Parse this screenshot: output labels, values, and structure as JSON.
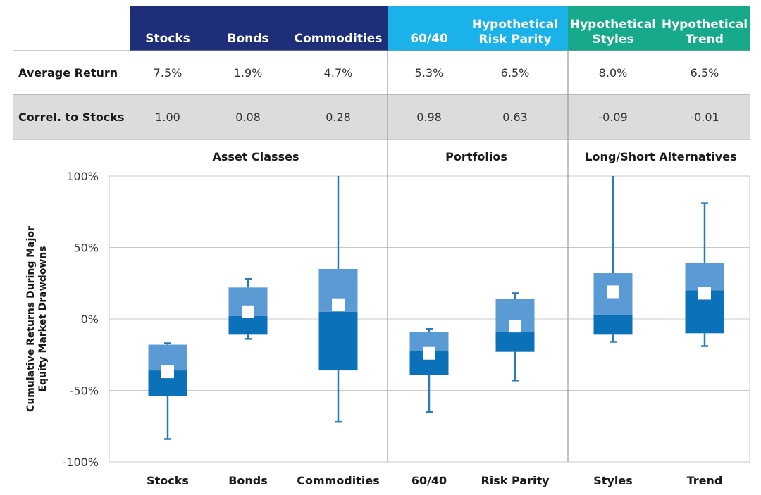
{
  "colors": {
    "header_navy": "#1e2e78",
    "header_cyan": "#1ab2e8",
    "header_teal": "#17aa8a",
    "row_shade": "#dcdcdc",
    "box_upper": "#5b9bd5",
    "box_lower": "#0b71b8",
    "whisker": "#2a7ab8",
    "median_marker": "#ffffff",
    "divider": "#9a9a9a",
    "grid": "#c8c8c8"
  },
  "table": {
    "columns": [
      {
        "label_lines": [
          "Stocks"
        ],
        "header_color": "header_navy"
      },
      {
        "label_lines": [
          "Bonds"
        ],
        "header_color": "header_navy"
      },
      {
        "label_lines": [
          "Commodities"
        ],
        "header_color": "header_navy"
      },
      {
        "label_lines": [
          "60/40"
        ],
        "header_color": "header_cyan"
      },
      {
        "label_lines": [
          "Hypothetical",
          "Risk Parity"
        ],
        "header_color": "header_cyan"
      },
      {
        "label_lines": [
          "Hypothetical",
          "Styles"
        ],
        "header_color": "header_teal"
      },
      {
        "label_lines": [
          "Hypothetical",
          "Trend"
        ],
        "header_color": "header_teal"
      }
    ],
    "rows": [
      {
        "label": "Average Return",
        "values": [
          "7.5%",
          "1.9%",
          "4.7%",
          "5.3%",
          "6.5%",
          "8.0%",
          "6.5%"
        ],
        "shaded": false
      },
      {
        "label": "Correl. to Stocks",
        "values": [
          "1.00",
          "0.08",
          "0.28",
          "0.98",
          "0.63",
          "-0.09",
          "-0.01"
        ],
        "shaded": true
      }
    ]
  },
  "chart_data": {
    "type": "box",
    "groups": [
      {
        "label": "Asset Classes",
        "categories": [
          "Stocks",
          "Bonds",
          "Commodities"
        ]
      },
      {
        "label": "Portfolios",
        "categories": [
          "60/40",
          "Risk Parity"
        ]
      },
      {
        "label": "Long/Short Alternatives",
        "categories": [
          "Styles",
          "Trend"
        ]
      }
    ],
    "categories": [
      "Stocks",
      "Bonds",
      "Commodities",
      "60/40",
      "Risk Parity",
      "Styles",
      "Trend"
    ],
    "series": [
      {
        "category": "Stocks",
        "min": -84,
        "q1": -54,
        "median": -37,
        "mean": -36,
        "q3": -18,
        "max": -17
      },
      {
        "category": "Bonds",
        "min": -14,
        "q1": -11,
        "median": 5,
        "mean": 2,
        "q3": 22,
        "max": 28
      },
      {
        "category": "Commodities",
        "min": -72,
        "q1": -36,
        "median": 10,
        "mean": 5,
        "q3": 35,
        "max": 100
      },
      {
        "category": "60/40",
        "min": -65,
        "q1": -39,
        "median": -24,
        "mean": -22,
        "q3": -9,
        "max": -7
      },
      {
        "category": "Risk Parity",
        "min": -43,
        "q1": -23,
        "median": -5,
        "mean": -9,
        "q3": 14,
        "max": 18
      },
      {
        "category": "Styles",
        "min": -16,
        "q1": -11,
        "median": 19,
        "mean": 3,
        "q3": 32,
        "max": 100
      },
      {
        "category": "Trend",
        "min": -19,
        "q1": -10,
        "median": 18,
        "mean": 20,
        "q3": 39,
        "max": 81
      }
    ],
    "yticks": [
      100,
      50,
      0,
      -50,
      -100
    ],
    "ytick_labels": [
      "100%",
      "50%",
      "0%",
      "-50%",
      "-100%"
    ],
    "ylim": [
      -100,
      100
    ],
    "ylabel_lines": [
      "Cumulative Returns During Major",
      "Equity Market Drawdowns"
    ],
    "grid": true
  }
}
